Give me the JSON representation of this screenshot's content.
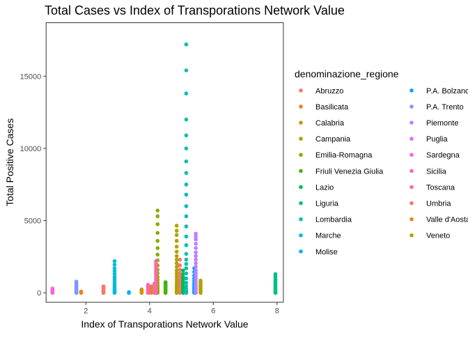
{
  "chart_data": {
    "type": "scatter",
    "title": "Total Cases vs Index of Transporations Network Value",
    "xlabel": "Index of Transporations Network Value",
    "ylabel": "Total Positive Cases",
    "xlim": [
      0.75,
      8.2
    ],
    "ylim": [
      -650,
      18700
    ],
    "x_ticks": [
      2,
      4,
      6,
      8
    ],
    "y_ticks": [
      0,
      5000,
      10000,
      15000
    ],
    "y_tick_labels": [
      "0",
      "5000",
      "10000",
      "15000"
    ],
    "grid": false,
    "legend_position": "right",
    "legend_title": "denominazione_regione",
    "series": [
      {
        "name": "Abruzzo",
        "color": "#F8766D",
        "x": [
          4.95,
          4.95,
          4.95,
          4.95,
          4.95,
          4.95,
          4.95,
          4.95,
          4.95,
          4.95,
          4.95,
          4.95,
          4.95,
          4.95,
          4.95
        ],
        "y": [
          0,
          50,
          120,
          200,
          300,
          400,
          520,
          650,
          800,
          950,
          1150,
          1350,
          1600,
          1900,
          2300
        ]
      },
      {
        "name": "Basilicata",
        "color": "#E7851E",
        "x": [
          1.85,
          1.85,
          1.85
        ],
        "y": [
          0,
          40,
          90
        ]
      },
      {
        "name": "Calabria",
        "color": "#D09400",
        "x": [
          3.75,
          3.75,
          3.75,
          3.75,
          3.75,
          3.75
        ],
        "y": [
          0,
          40,
          80,
          130,
          180,
          240
        ]
      },
      {
        "name": "Campania",
        "color": "#B2A100",
        "x": [
          5.6,
          5.6,
          5.6,
          5.6,
          5.6,
          5.6,
          5.6,
          5.6,
          5.6,
          5.6
        ],
        "y": [
          0,
          80,
          160,
          250,
          350,
          450,
          550,
          650,
          750,
          850
        ]
      },
      {
        "name": "Emilia-Romagna",
        "color": "#89AC00",
        "x": [
          4.25,
          4.25,
          4.25,
          4.25,
          4.25,
          4.25,
          4.25,
          4.25,
          4.25,
          4.25,
          4.25,
          4.25,
          4.25,
          4.25,
          4.25,
          4.25,
          4.25,
          4.25,
          4.25,
          4.25,
          4.25
        ],
        "y": [
          0,
          50,
          120,
          200,
          300,
          420,
          560,
          720,
          900,
          1100,
          1350,
          1600,
          1900,
          2250,
          2650,
          3100,
          3600,
          4150,
          4750,
          5300,
          5700
        ]
      },
      {
        "name": "Friuli Venezia Giulia",
        "color": "#45B500",
        "x": [
          4.5,
          4.5,
          4.5,
          4.5,
          4.5,
          4.5,
          4.5,
          4.5,
          4.5,
          4.5
        ],
        "y": [
          0,
          60,
          130,
          210,
          300,
          390,
          480,
          570,
          660,
          740
        ]
      },
      {
        "name": "Lazio",
        "color": "#00BC51",
        "x": [
          5.05,
          5.05,
          5.05,
          5.05,
          5.05,
          5.05,
          5.05,
          5.05,
          5.05,
          5.05,
          5.05,
          5.05
        ],
        "y": [
          0,
          70,
          150,
          250,
          370,
          500,
          650,
          800,
          950,
          1100,
          1300,
          1550
        ]
      },
      {
        "name": "Liguria",
        "color": "#00C087",
        "x": [
          7.95,
          7.95,
          7.95,
          7.95,
          7.95,
          7.95,
          7.95,
          7.95,
          7.95,
          7.95,
          7.95,
          7.95,
          7.95,
          7.95
        ],
        "y": [
          0,
          60,
          130,
          210,
          300,
          390,
          480,
          580,
          680,
          790,
          900,
          1020,
          1150,
          1300
        ]
      },
      {
        "name": "Lombardia",
        "color": "#00C0B2",
        "x": [
          5.15,
          5.15,
          5.15,
          5.15,
          5.15,
          5.15,
          5.15,
          5.15,
          5.15,
          5.15,
          5.15,
          5.15,
          5.15,
          5.15,
          5.15,
          5.15,
          5.15,
          5.15,
          5.15,
          5.15,
          5.15,
          5.15,
          5.15,
          5.15,
          5.15,
          5.15
        ],
        "y": [
          0,
          100,
          250,
          450,
          700,
          1000,
          1350,
          1700,
          2000,
          2300,
          2700,
          3300,
          3900,
          4600,
          5300,
          6000,
          6800,
          7500,
          8300,
          9100,
          10000,
          10900,
          12000,
          13800,
          15400,
          17200
        ]
      },
      {
        "name": "Marche",
        "color": "#00BCD6",
        "x": [
          2.9,
          2.9,
          2.9,
          2.9,
          2.9,
          2.9,
          2.9,
          2.9,
          2.9,
          2.9,
          2.9,
          2.9,
          2.9,
          2.9,
          2.9,
          2.9
        ],
        "y": [
          0,
          50,
          120,
          200,
          300,
          400,
          520,
          650,
          800,
          950,
          1100,
          1300,
          1500,
          1700,
          1950,
          2200
        ]
      },
      {
        "name": "Molise",
        "color": "#00B4EF",
        "x": [
          3.35,
          3.35,
          3.35
        ],
        "y": [
          0,
          20,
          50
        ]
      },
      {
        "name": "P.A. Bolzano",
        "color": "#00A5FF",
        "x": [
          5.4,
          5.4,
          5.4,
          5.4,
          5.4,
          5.4,
          5.4,
          5.4,
          5.4,
          5.4,
          5.4,
          5.4,
          5.4,
          5.4
        ],
        "y": [
          0,
          50,
          110,
          180,
          260,
          350,
          450,
          570,
          700,
          850,
          1000,
          1200,
          1450,
          1700
        ]
      },
      {
        "name": "P.A. Trento",
        "color": "#7F96FF",
        "x": [
          1.7,
          1.7,
          1.7,
          1.7,
          1.7,
          1.7,
          1.7,
          1.7,
          1.7,
          1.7,
          1.7,
          1.7
        ],
        "y": [
          0,
          50,
          100,
          160,
          230,
          300,
          380,
          460,
          540,
          620,
          700,
          780
        ]
      },
      {
        "name": "Piemonte",
        "color": "#BC81FF",
        "x": [
          5.45,
          5.45,
          5.45,
          5.45,
          5.45,
          5.45,
          5.45,
          5.45,
          5.45,
          5.45,
          5.45,
          5.45,
          5.45,
          5.45,
          5.45,
          5.45,
          5.45,
          5.45,
          5.45,
          5.45,
          5.45
        ],
        "y": [
          0,
          80,
          180,
          300,
          450,
          600,
          780,
          950,
          1150,
          1350,
          1550,
          1800,
          2050,
          2300,
          2550,
          2800,
          3100,
          3400,
          3700,
          3900,
          4100
        ]
      },
      {
        "name": "Puglia",
        "color": "#E26EF7",
        "x": [
          4.15,
          4.15,
          4.15,
          4.15,
          4.15,
          4.15,
          4.15,
          4.15,
          4.15,
          4.15
        ],
        "y": [
          0,
          50,
          110,
          180,
          260,
          340,
          420,
          500,
          580,
          650
        ]
      },
      {
        "name": "Sardegna",
        "color": "#F863DF",
        "x": [
          0.95,
          0.95,
          0.95,
          0.95,
          0.95,
          0.95,
          0.95
        ],
        "y": [
          0,
          40,
          80,
          130,
          180,
          240,
          300
        ]
      },
      {
        "name": "Sicilia",
        "color": "#FF62BF",
        "x": [
          3.95,
          3.95,
          3.95,
          3.95,
          3.95,
          3.95,
          3.95
        ],
        "y": [
          0,
          60,
          130,
          220,
          320,
          430,
          560
        ]
      },
      {
        "name": "Toscana",
        "color": "#FF6A9A",
        "x": [
          4.2,
          4.2,
          4.2,
          4.2,
          4.2,
          4.2,
          4.2,
          4.2,
          4.2,
          4.2,
          4.2,
          4.2,
          4.2,
          4.2,
          4.2,
          4.2,
          4.2
        ],
        "y": [
          0,
          70,
          160,
          260,
          380,
          500,
          650,
          800,
          950,
          1100,
          1250,
          1400,
          1550,
          1700,
          1850,
          2000,
          2200
        ]
      },
      {
        "name": "Umbria",
        "color": "#F8766D",
        "x": [
          2.55,
          2.55,
          2.55,
          2.55,
          2.55,
          2.55,
          2.55,
          2.55
        ],
        "y": [
          0,
          50,
          110,
          180,
          250,
          320,
          390,
          450
        ]
      },
      {
        "name": "Valle d'Aosta",
        "color": "#E7851E",
        "x": [
          4.05,
          4.05,
          4.05,
          4.05,
          4.05,
          4.05,
          4.05
        ],
        "y": [
          0,
          60,
          130,
          210,
          290,
          370,
          450
        ]
      },
      {
        "name": "Veneto",
        "color": "#B2A100",
        "x": [
          4.85,
          4.85,
          4.85,
          4.85,
          4.85,
          4.85,
          4.85,
          4.85,
          4.85,
          4.85,
          4.85,
          4.85,
          4.85,
          4.85,
          4.85,
          4.85,
          4.85,
          4.85,
          4.85,
          4.85,
          4.85
        ],
        "y": [
          0,
          80,
          180,
          300,
          450,
          600,
          780,
          950,
          1150,
          1350,
          1550,
          1800,
          2050,
          2300,
          2550,
          2850,
          3200,
          3600,
          4000,
          4300,
          4650
        ]
      }
    ]
  }
}
